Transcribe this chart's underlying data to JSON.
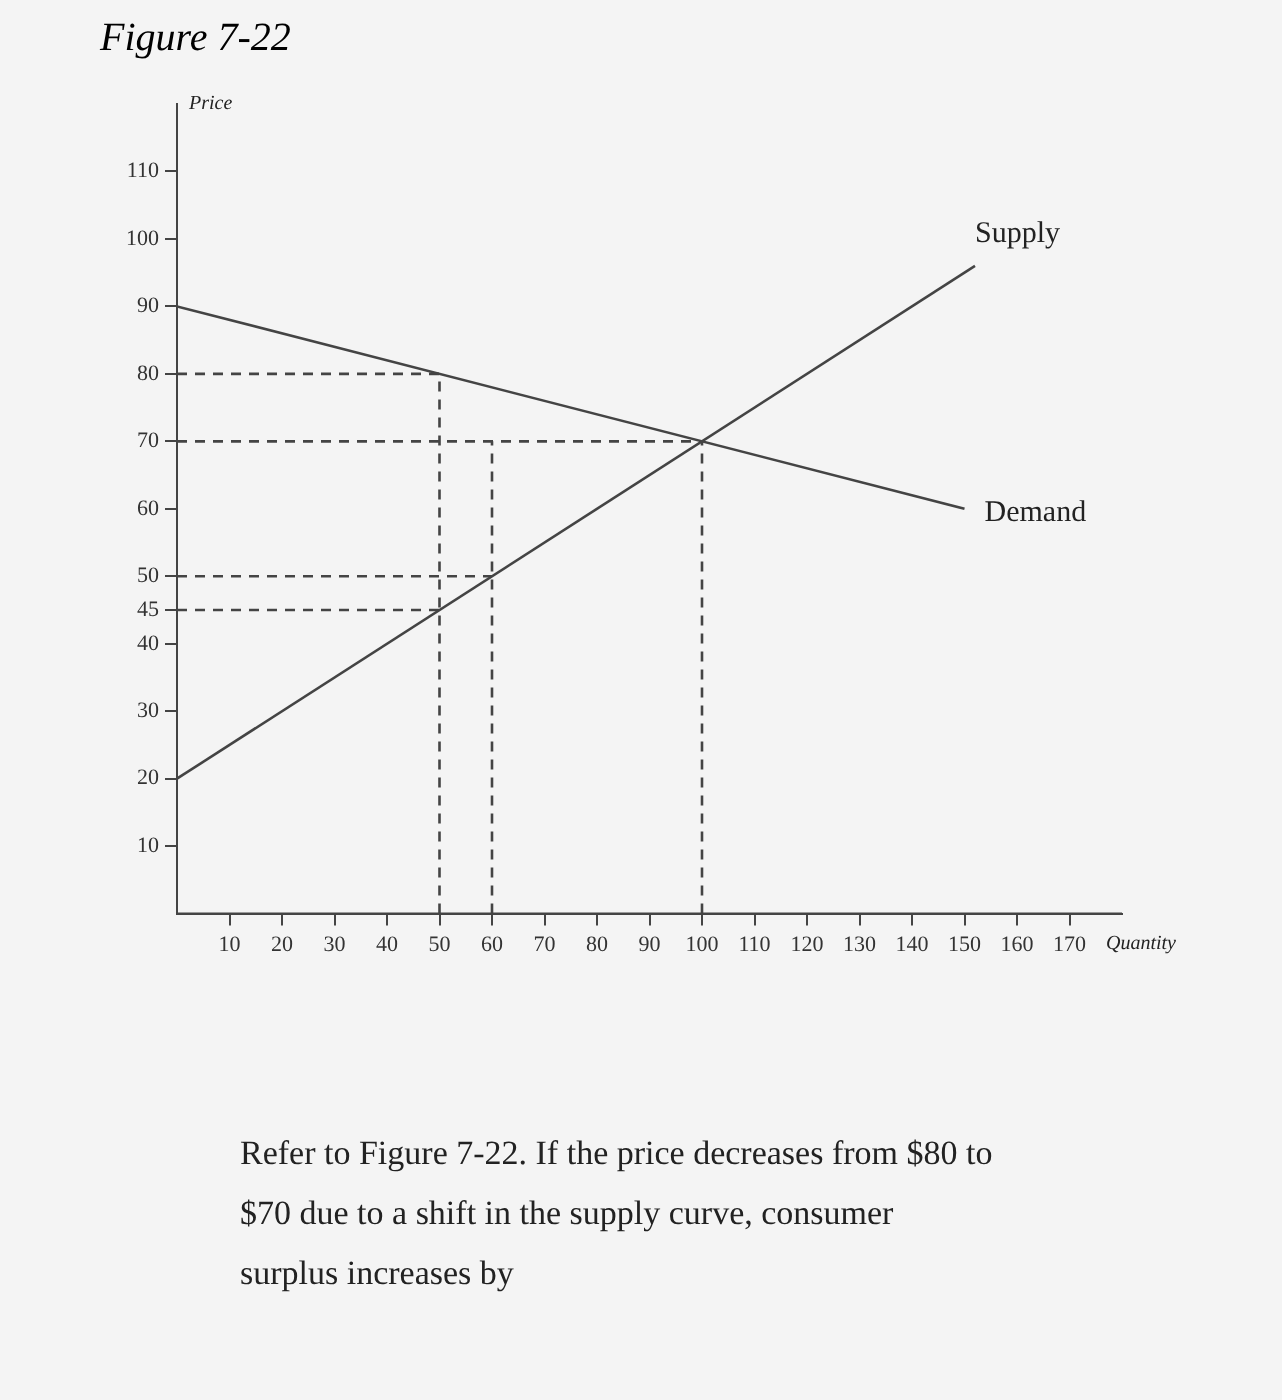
{
  "chart_data": {
    "type": "line",
    "title": "Figure 7-22",
    "xlabel": "Quantity",
    "ylabel": "Price",
    "annotations": [
      "Refer to Figure 7-22. If the price decreases from $80 to $70 due to a shift in the supply curve, consumer surplus increases by"
    ],
    "xlim": [
      0,
      180
    ],
    "ylim": [
      0,
      120
    ],
    "xticks": [
      10,
      20,
      30,
      40,
      50,
      60,
      70,
      80,
      90,
      100,
      110,
      120,
      130,
      140,
      150,
      160,
      170
    ],
    "yticks": [
      10,
      20,
      30,
      40,
      45,
      50,
      60,
      70,
      80,
      90,
      100,
      110
    ],
    "grid": false,
    "legend": false,
    "marker": "none",
    "series": [
      {
        "name": "Supply",
        "color": "#444444",
        "x": [
          0,
          152
        ],
        "values": [
          20,
          96
        ]
      },
      {
        "name": "Demand",
        "color": "#444444",
        "x": [
          0,
          150
        ],
        "values": [
          90,
          60
        ]
      },
      {
        "color": "#444444",
        "line_style": "dashed",
        "x": [
          0,
          50
        ],
        "values": [
          80,
          80
        ]
      },
      {
        "color": "#444444",
        "line_style": "dashed",
        "x": [
          0,
          100
        ],
        "values": [
          70,
          70
        ]
      },
      {
        "color": "#444444",
        "line_style": "dashed",
        "x": [
          0,
          60
        ],
        "values": [
          50,
          50
        ]
      },
      {
        "color": "#444444",
        "line_style": "dashed",
        "x": [
          0,
          50
        ],
        "values": [
          45,
          45
        ]
      },
      {
        "color": "#444444",
        "line_style": "dashed",
        "x": [
          50,
          50
        ],
        "values": [
          0,
          80
        ]
      },
      {
        "color": "#444444",
        "line_style": "dashed",
        "x": [
          60,
          60
        ],
        "values": [
          0,
          70
        ]
      },
      {
        "color": "#444444",
        "line_style": "dashed",
        "x": [
          100,
          100
        ],
        "values": [
          0,
          70
        ]
      }
    ]
  }
}
